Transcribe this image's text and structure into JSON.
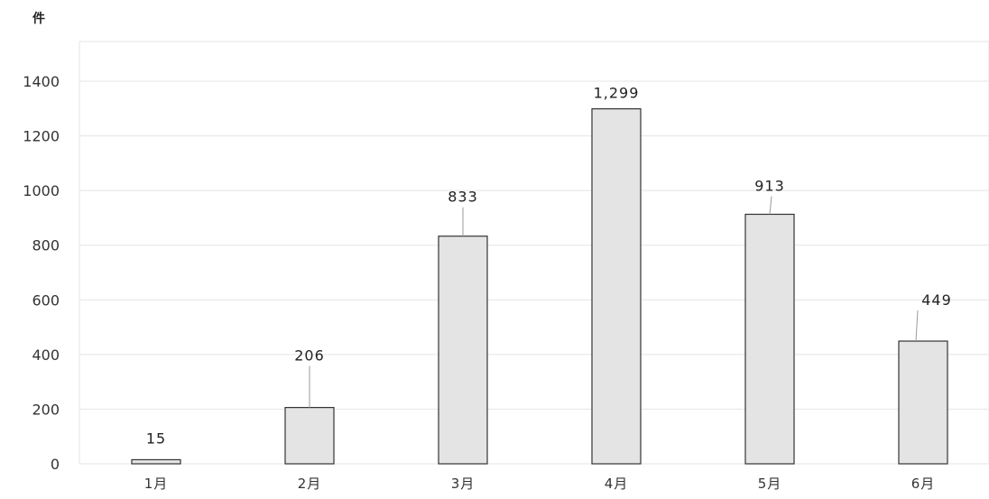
{
  "chart_data": {
    "type": "bar",
    "unit_label": "件",
    "categories": [
      "1月",
      "2月",
      "3月",
      "4月",
      "5月",
      "6月"
    ],
    "values": [
      15,
      206,
      833,
      1299,
      913,
      449
    ],
    "data_labels": [
      "15",
      "206",
      "833",
      "1,299",
      "913",
      "449"
    ],
    "y_ticks": [
      0,
      200,
      400,
      600,
      800,
      1000,
      1200,
      1400
    ],
    "ylim": [
      0,
      1400
    ],
    "grid": true,
    "legend": "none",
    "colors": {
      "bar_fill": "#e4e4e4",
      "bar_stroke": "#333333",
      "grid": "#e4e4e4",
      "leader": "#9a9a9a"
    }
  }
}
